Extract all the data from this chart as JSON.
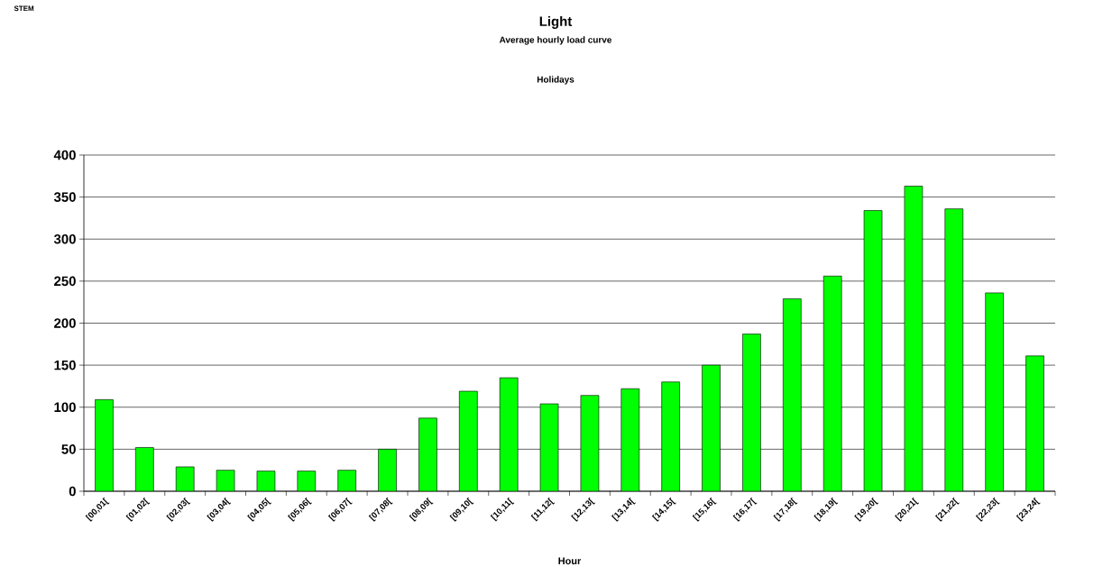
{
  "chart_data": {
    "type": "bar",
    "title": "Light",
    "subtitle": "Average hourly load curve",
    "xlabel": "Hour",
    "annotations": [
      "STEM",
      "Holidays"
    ],
    "categories": [
      "[00,01[",
      "[01,02[",
      "[02,03[",
      "[03,04[",
      "[04,05[",
      "[05,06[",
      "[06,07[",
      "[07,08[",
      "[08,09[",
      "[09,10[",
      "[10,11[",
      "[11,12[",
      "[12,13[",
      "[13,14[",
      "[14,15[",
      "[15,16[",
      "[16,17[",
      "[17,18[",
      "[18,19[",
      "[19,20[",
      "[20,21[",
      "[21,22[",
      "[22,23[",
      "[23,24["
    ],
    "values": [
      109,
      52,
      29,
      25,
      24,
      24,
      25,
      50,
      87,
      119,
      135,
      104,
      114,
      122,
      130,
      150,
      187,
      229,
      256,
      334,
      363,
      336,
      236,
      161
    ],
    "color": "#00ff00",
    "ylim": [
      0,
      400
    ],
    "yticks": [
      0,
      50,
      100,
      150,
      200,
      250,
      300,
      350,
      400
    ],
    "grid": "y"
  }
}
